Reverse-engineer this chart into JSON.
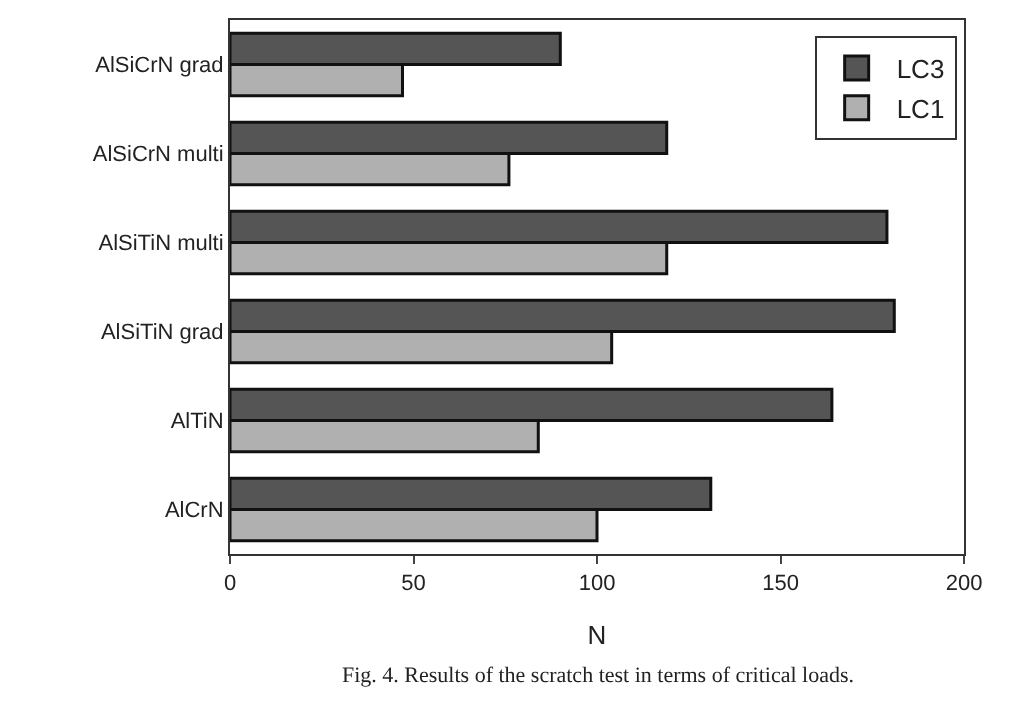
{
  "chart_data": {
    "type": "bar",
    "orientation": "horizontal",
    "xlabel": "N",
    "categories": [
      "AlSiCrN grad",
      "AlSiCrN multi",
      "AlSiTiN multi",
      "AlSiTiN grad",
      "AlTiN",
      "AlCrN"
    ],
    "series": [
      {
        "name": "LC3",
        "color": "#555555",
        "values": [
          90,
          119,
          179,
          181,
          164,
          131
        ]
      },
      {
        "name": "LC1",
        "color": "#b0b0b0",
        "values": [
          47,
          76,
          119,
          104,
          84,
          100
        ]
      }
    ],
    "xlim": [
      0,
      200
    ],
    "xticks": [
      0,
      50,
      100,
      150,
      200
    ],
    "grid": false,
    "legend": "top right",
    "annotations": [
      "Fig. 4. Results of the scratch test in terms of critical loads."
    ]
  }
}
